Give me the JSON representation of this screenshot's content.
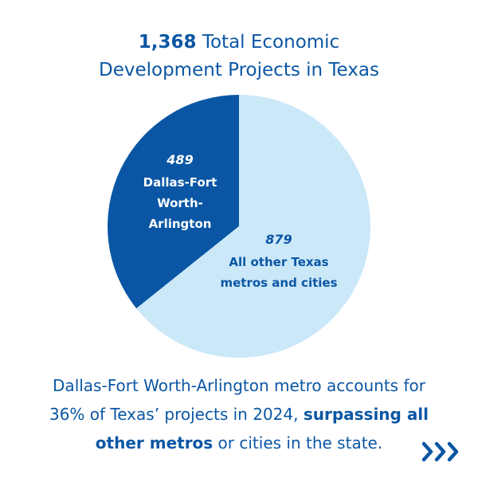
{
  "header": {
    "title_number": "1,368",
    "title_rest": " Total Economic",
    "title_line2": "Development Projects in Texas"
  },
  "chart_data": {
    "type": "pie",
    "title": "1,368 Total Economic Development Projects in Texas",
    "slices": [
      {
        "value": 489,
        "value_label": "489",
        "label_lines": [
          "Dallas-Fort",
          "Worth-",
          "Arlington"
        ],
        "color": "#0a56a5",
        "text_color": "#ffffff"
      },
      {
        "value": 879,
        "value_label": "879",
        "label_lines": [
          "All other Texas",
          "metros and cities"
        ],
        "color": "#cbe8f9",
        "text_color": "#0b57a4"
      }
    ]
  },
  "caption": {
    "line1": "Dallas-Fort Worth-Arlington metro accounts for",
    "line2_plain": "36% of Texas’ projects in 2024, ",
    "line2_bold": "surpassing all",
    "line3_bold": "other metros",
    "line3_plain": " or cities in the state."
  },
  "next_icon": "triple-chevron-right-icon",
  "colors": {
    "brand_blue": "#0b57a4",
    "dark_slice": "#0a56a5",
    "light_slice": "#cbe8f9"
  }
}
